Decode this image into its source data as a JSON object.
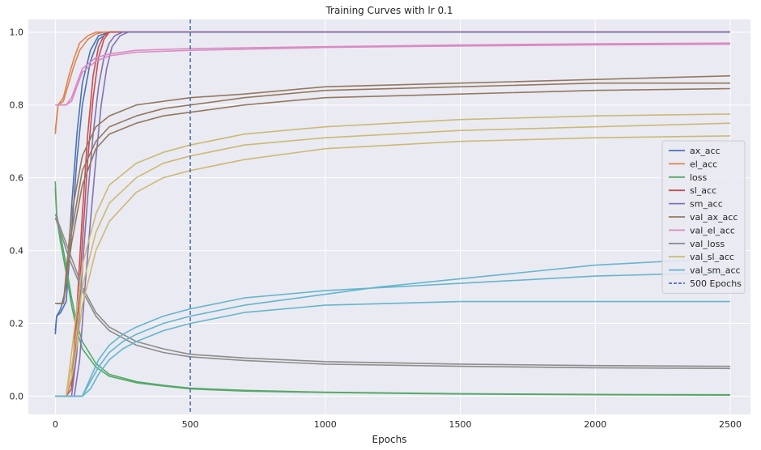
{
  "chart_data": {
    "type": "line",
    "title": "Training Curves with lr 0.1",
    "xlabel": "Epochs",
    "ylabel": "",
    "xlim": [
      -100,
      2575
    ],
    "ylim": [
      -0.05,
      1.035
    ],
    "xticks": [
      0,
      500,
      1000,
      1500,
      2000,
      2500
    ],
    "xtick_labels": [
      "0",
      "500",
      "1000",
      "1500",
      "2000",
      "2500"
    ],
    "yticks": [
      0.0,
      0.2,
      0.4,
      0.6,
      0.8,
      1.0
    ],
    "ytick_labels": [
      "0.0",
      "0.2",
      "0.4",
      "0.6",
      "0.8",
      "1.0"
    ],
    "grid": true,
    "background": "#eaeaf2",
    "legend_position": "center-right",
    "series": [
      {
        "name": "ax_acc",
        "color": "#4c72b0",
        "runs": [
          {
            "x": [
              0,
              5,
              20,
              40,
              60,
              80,
              100,
              130,
              160,
              200,
              250,
              2500
            ],
            "y": [
              0.17,
              0.22,
              0.23,
              0.26,
              0.45,
              0.65,
              0.8,
              0.92,
              0.98,
              1.0,
              1.0,
              1.0
            ]
          },
          {
            "x": [
              0,
              5,
              20,
              40,
              60,
              80,
              100,
              130,
              160,
              200,
              2500
            ],
            "y": [
              0.18,
              0.22,
              0.24,
              0.3,
              0.52,
              0.72,
              0.86,
              0.95,
              0.99,
              1.0,
              1.0
            ]
          }
        ]
      },
      {
        "name": "el_acc",
        "color": "#dd8452",
        "runs": [
          {
            "x": [
              0,
              10,
              30,
              50,
              70,
              90,
              120,
              150,
              180,
              220,
              2500
            ],
            "y": [
              0.73,
              0.8,
              0.81,
              0.86,
              0.91,
              0.95,
              0.98,
              0.995,
              1.0,
              1.0,
              1.0
            ]
          },
          {
            "x": [
              0,
              10,
              30,
              50,
              70,
              90,
              120,
              150,
              180,
              2500
            ],
            "y": [
              0.72,
              0.8,
              0.82,
              0.88,
              0.93,
              0.97,
              0.99,
              1.0,
              1.0,
              1.0
            ]
          }
        ]
      },
      {
        "name": "loss",
        "color": "#55a868",
        "runs": [
          {
            "x": [
              0,
              5,
              20,
              40,
              60,
              80,
              100,
              150,
              200,
              300,
              400,
              500,
              700,
              1000,
              1500,
              2000,
              2500
            ],
            "y": [
              0.59,
              0.5,
              0.44,
              0.36,
              0.27,
              0.2,
              0.15,
              0.09,
              0.06,
              0.04,
              0.03,
              0.022,
              0.016,
              0.011,
              0.007,
              0.005,
              0.004
            ]
          },
          {
            "x": [
              0,
              5,
              20,
              40,
              60,
              80,
              100,
              150,
              200,
              300,
              400,
              500,
              700,
              1000,
              1500,
              2000,
              2500
            ],
            "y": [
              0.57,
              0.49,
              0.42,
              0.34,
              0.25,
              0.18,
              0.13,
              0.08,
              0.055,
              0.037,
              0.028,
              0.02,
              0.014,
              0.01,
              0.006,
              0.004,
              0.003
            ]
          }
        ]
      },
      {
        "name": "sl_acc",
        "color": "#c44e52",
        "runs": [
          {
            "x": [
              0,
              40,
              60,
              80,
              100,
              120,
              140,
              160,
              180,
              200,
              2500
            ],
            "y": [
              0.0,
              0.0,
              0.02,
              0.18,
              0.42,
              0.65,
              0.82,
              0.93,
              0.98,
              1.0,
              1.0
            ]
          },
          {
            "x": [
              0,
              40,
              60,
              80,
              100,
              120,
              140,
              160,
              180,
              200,
              2500
            ],
            "y": [
              0.0,
              0.0,
              0.04,
              0.24,
              0.5,
              0.72,
              0.88,
              0.96,
              0.99,
              1.0,
              1.0
            ]
          }
        ]
      },
      {
        "name": "sm_acc",
        "color": "#8172b3",
        "runs": [
          {
            "x": [
              0,
              60,
              80,
              100,
              120,
              140,
              160,
              180,
              200,
              220,
              250,
              2500
            ],
            "y": [
              0.0,
              0.0,
              0.12,
              0.35,
              0.55,
              0.72,
              0.85,
              0.93,
              0.97,
              0.99,
              1.0,
              1.0
            ]
          },
          {
            "x": [
              0,
              70,
              90,
              110,
              130,
              150,
              170,
              190,
              210,
              240,
              270,
              2500
            ],
            "y": [
              0.0,
              0.0,
              0.1,
              0.3,
              0.48,
              0.65,
              0.8,
              0.9,
              0.96,
              0.99,
              1.0,
              1.0
            ]
          }
        ]
      },
      {
        "name": "val_ax_acc",
        "color": "#937860",
        "runs": [
          {
            "x": [
              0,
              30,
              60,
              100,
              150,
              200,
              300,
              400,
              500,
              700,
              1000,
              1500,
              2000,
              2500
            ],
            "y": [
              0.255,
              0.255,
              0.45,
              0.62,
              0.7,
              0.74,
              0.77,
              0.79,
              0.8,
              0.82,
              0.84,
              0.85,
              0.86,
              0.86
            ]
          },
          {
            "x": [
              0,
              30,
              60,
              100,
              150,
              200,
              300,
              400,
              500,
              700,
              1000,
              1500,
              2000,
              2500
            ],
            "y": [
              0.255,
              0.255,
              0.5,
              0.66,
              0.74,
              0.77,
              0.8,
              0.81,
              0.82,
              0.83,
              0.85,
              0.86,
              0.87,
              0.88
            ]
          },
          {
            "x": [
              0,
              30,
              60,
              100,
              150,
              200,
              300,
              400,
              500,
              700,
              1000,
              1500,
              2000,
              2500
            ],
            "y": [
              0.255,
              0.255,
              0.42,
              0.58,
              0.68,
              0.72,
              0.75,
              0.77,
              0.78,
              0.8,
              0.82,
              0.83,
              0.84,
              0.845
            ]
          }
        ]
      },
      {
        "name": "val_el_acc",
        "color": "#da8bc3",
        "runs": [
          {
            "x": [
              0,
              20,
              40,
              60,
              80,
              100,
              150,
              200,
              300,
              500,
              1000,
              1500,
              2000,
              2500
            ],
            "y": [
              0.8,
              0.8,
              0.8,
              0.82,
              0.86,
              0.9,
              0.93,
              0.94,
              0.95,
              0.955,
              0.96,
              0.965,
              0.968,
              0.97
            ]
          },
          {
            "x": [
              0,
              20,
              40,
              60,
              80,
              100,
              150,
              200,
              300,
              500,
              1000,
              1500,
              2000,
              2500
            ],
            "y": [
              0.8,
              0.8,
              0.8,
              0.81,
              0.85,
              0.89,
              0.92,
              0.935,
              0.945,
              0.95,
              0.958,
              0.962,
              0.965,
              0.967
            ]
          }
        ]
      },
      {
        "name": "val_loss",
        "color": "#8c8c8c",
        "runs": [
          {
            "x": [
              0,
              20,
              50,
              100,
              150,
              200,
              300,
              400,
              500,
              700,
              1000,
              1500,
              2000,
              2500
            ],
            "y": [
              0.5,
              0.46,
              0.4,
              0.3,
              0.23,
              0.19,
              0.15,
              0.13,
              0.115,
              0.105,
              0.095,
              0.088,
              0.084,
              0.082
            ]
          },
          {
            "x": [
              0,
              20,
              50,
              100,
              150,
              200,
              300,
              400,
              500,
              700,
              1000,
              1500,
              2000,
              2500
            ],
            "y": [
              0.49,
              0.45,
              0.38,
              0.29,
              0.22,
              0.18,
              0.14,
              0.12,
              0.108,
              0.098,
              0.088,
              0.082,
              0.078,
              0.076
            ]
          }
        ]
      },
      {
        "name": "val_sl_acc",
        "color": "#ccb974",
        "runs": [
          {
            "x": [
              0,
              40,
              60,
              80,
              100,
              150,
              200,
              300,
              400,
              500,
              700,
              1000,
              1500,
              2000,
              2500
            ],
            "y": [
              0.0,
              0.0,
              0.08,
              0.18,
              0.3,
              0.45,
              0.53,
              0.6,
              0.64,
              0.66,
              0.69,
              0.71,
              0.73,
              0.74,
              0.75
            ]
          },
          {
            "x": [
              0,
              40,
              60,
              80,
              100,
              150,
              200,
              300,
              400,
              500,
              700,
              1000,
              1500,
              2000,
              2500
            ],
            "y": [
              0.0,
              0.0,
              0.12,
              0.24,
              0.36,
              0.5,
              0.58,
              0.64,
              0.67,
              0.69,
              0.72,
              0.74,
              0.76,
              0.77,
              0.775
            ]
          },
          {
            "x": [
              0,
              40,
              60,
              80,
              100,
              150,
              200,
              300,
              400,
              500,
              700,
              1000,
              1500,
              2000,
              2500
            ],
            "y": [
              0.0,
              0.0,
              0.05,
              0.14,
              0.25,
              0.4,
              0.48,
              0.56,
              0.6,
              0.62,
              0.65,
              0.68,
              0.7,
              0.71,
              0.715
            ]
          }
        ]
      },
      {
        "name": "val_sm_acc",
        "color": "#64b5cd",
        "runs": [
          {
            "x": [
              0,
              100,
              130,
              160,
              200,
              250,
              300,
              400,
              500,
              700,
              1000,
              1200,
              1600,
              2000,
              2500
            ],
            "y": [
              0.0,
              0.0,
              0.04,
              0.08,
              0.12,
              0.15,
              0.17,
              0.2,
              0.22,
              0.25,
              0.28,
              0.3,
              0.33,
              0.36,
              0.38
            ]
          },
          {
            "x": [
              0,
              100,
              130,
              160,
              200,
              250,
              300,
              400,
              500,
              700,
              1000,
              1500,
              2000,
              2500
            ],
            "y": [
              0.0,
              0.0,
              0.02,
              0.06,
              0.1,
              0.13,
              0.15,
              0.18,
              0.2,
              0.23,
              0.25,
              0.26,
              0.26,
              0.26
            ]
          },
          {
            "x": [
              0,
              100,
              130,
              160,
              200,
              250,
              300,
              400,
              500,
              700,
              1000,
              1500,
              2000,
              2500
            ],
            "y": [
              0.0,
              0.0,
              0.05,
              0.1,
              0.14,
              0.17,
              0.19,
              0.22,
              0.24,
              0.27,
              0.29,
              0.31,
              0.33,
              0.34
            ]
          }
        ]
      }
    ],
    "annotations": [
      {
        "type": "vline",
        "x": 500,
        "label": "500 Epochs",
        "color": "#4c72b0",
        "style": "dashed"
      }
    ]
  }
}
